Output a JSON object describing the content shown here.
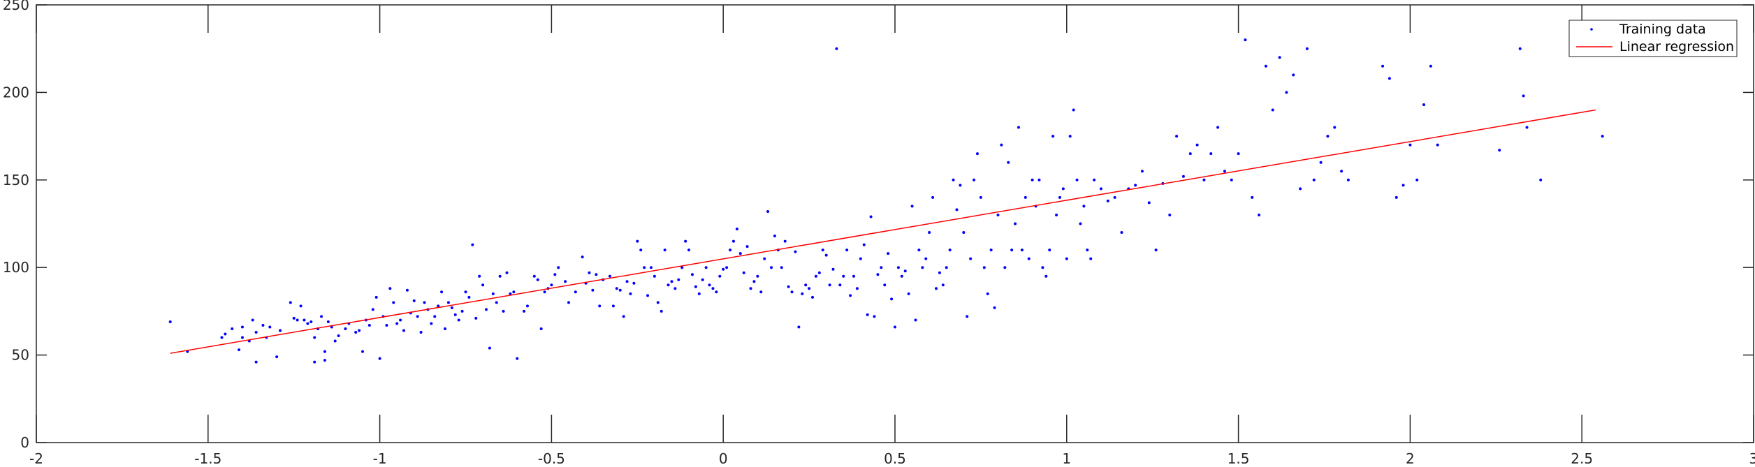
{
  "chart_data": {
    "type": "scatter",
    "title": "",
    "xlabel": "",
    "ylabel": "",
    "xlim": [
      -2,
      3
    ],
    "ylim": [
      0,
      250
    ],
    "xticks": [
      "-2",
      "-1.5",
      "-1",
      "-0.5",
      "0",
      "0.5",
      "1",
      "1.5",
      "2",
      "2.5",
      "3"
    ],
    "yticks": [
      "0",
      "50",
      "100",
      "150",
      "200",
      "250"
    ],
    "grid": false,
    "legend_position": "top-right",
    "colors": {
      "points": "#0000ff",
      "line": "#ff0000",
      "axes": "#262626"
    },
    "legend": [
      {
        "label": "Training data",
        "marker": "dot",
        "color": "#0000ff"
      },
      {
        "label": "Linear regression",
        "marker": "line",
        "color": "#ff0000"
      }
    ],
    "series": [
      {
        "name": "Training data",
        "kind": "scatter",
        "points": [
          [
            -1.61,
            69
          ],
          [
            -1.56,
            52
          ],
          [
            -1.46,
            60
          ],
          [
            -1.45,
            62
          ],
          [
            -1.43,
            65
          ],
          [
            -1.41,
            53
          ],
          [
            -1.4,
            60
          ],
          [
            -1.4,
            66
          ],
          [
            -1.38,
            58
          ],
          [
            -1.37,
            70
          ],
          [
            -1.36,
            63
          ],
          [
            -1.36,
            46
          ],
          [
            -1.34,
            67
          ],
          [
            -1.33,
            60
          ],
          [
            -1.32,
            66
          ],
          [
            -1.3,
            49
          ],
          [
            -1.29,
            64
          ],
          [
            -1.26,
            80
          ],
          [
            -1.25,
            71
          ],
          [
            -1.24,
            70
          ],
          [
            -1.23,
            78
          ],
          [
            -1.22,
            70
          ],
          [
            -1.21,
            68
          ],
          [
            -1.2,
            69
          ],
          [
            -1.19,
            60
          ],
          [
            -1.19,
            46
          ],
          [
            -1.18,
            65
          ],
          [
            -1.17,
            72
          ],
          [
            -1.16,
            52
          ],
          [
            -1.16,
            47
          ],
          [
            -1.15,
            69
          ],
          [
            -1.14,
            66
          ],
          [
            -1.13,
            58
          ],
          [
            -1.12,
            61
          ],
          [
            -1.1,
            65
          ],
          [
            -1.09,
            68
          ],
          [
            -1.07,
            63
          ],
          [
            -1.06,
            64
          ],
          [
            -1.05,
            52
          ],
          [
            -1.04,
            70
          ],
          [
            -1.03,
            67
          ],
          [
            -1.02,
            76
          ],
          [
            -1.01,
            83
          ],
          [
            -1.0,
            48
          ],
          [
            -0.99,
            72
          ],
          [
            -0.98,
            67
          ],
          [
            -0.97,
            88
          ],
          [
            -0.96,
            80
          ],
          [
            -0.95,
            68
          ],
          [
            -0.94,
            70
          ],
          [
            -0.93,
            64
          ],
          [
            -0.92,
            87
          ],
          [
            -0.91,
            74
          ],
          [
            -0.9,
            81
          ],
          [
            -0.89,
            72
          ],
          [
            -0.88,
            63
          ],
          [
            -0.87,
            80
          ],
          [
            -0.86,
            76
          ],
          [
            -0.85,
            68
          ],
          [
            -0.84,
            72
          ],
          [
            -0.83,
            78
          ],
          [
            -0.82,
            86
          ],
          [
            -0.81,
            65
          ],
          [
            -0.8,
            80
          ],
          [
            -0.79,
            77
          ],
          [
            -0.78,
            73
          ],
          [
            -0.77,
            70
          ],
          [
            -0.76,
            75
          ],
          [
            -0.75,
            86
          ],
          [
            -0.74,
            83
          ],
          [
            -0.73,
            113
          ],
          [
            -0.72,
            71
          ],
          [
            -0.71,
            95
          ],
          [
            -0.7,
            90
          ],
          [
            -0.69,
            76
          ],
          [
            -0.68,
            54
          ],
          [
            -0.67,
            85
          ],
          [
            -0.66,
            80
          ],
          [
            -0.65,
            95
          ],
          [
            -0.64,
            75
          ],
          [
            -0.63,
            97
          ],
          [
            -0.62,
            85
          ],
          [
            -0.61,
            86
          ],
          [
            -0.6,
            48
          ],
          [
            -0.58,
            75
          ],
          [
            -0.57,
            78
          ],
          [
            -0.55,
            95
          ],
          [
            -0.54,
            93
          ],
          [
            -0.53,
            65
          ],
          [
            -0.52,
            86
          ],
          [
            -0.51,
            88
          ],
          [
            -0.5,
            90
          ],
          [
            -0.49,
            96
          ],
          [
            -0.48,
            100
          ],
          [
            -0.46,
            92
          ],
          [
            -0.45,
            80
          ],
          [
            -0.43,
            86
          ],
          [
            -0.41,
            106
          ],
          [
            -0.4,
            91
          ],
          [
            -0.39,
            97
          ],
          [
            -0.38,
            87
          ],
          [
            -0.37,
            96
          ],
          [
            -0.36,
            78
          ],
          [
            -0.35,
            93
          ],
          [
            -0.33,
            95
          ],
          [
            -0.32,
            78
          ],
          [
            -0.31,
            88
          ],
          [
            -0.3,
            87
          ],
          [
            -0.29,
            72
          ],
          [
            -0.28,
            92
          ],
          [
            -0.27,
            85
          ],
          [
            -0.26,
            91
          ],
          [
            -0.25,
            115
          ],
          [
            -0.24,
            110
          ],
          [
            -0.23,
            100
          ],
          [
            -0.22,
            84
          ],
          [
            -0.21,
            100
          ],
          [
            -0.2,
            95
          ],
          [
            -0.19,
            80
          ],
          [
            -0.18,
            75
          ],
          [
            -0.17,
            110
          ],
          [
            -0.16,
            90
          ],
          [
            -0.15,
            92
          ],
          [
            -0.14,
            88
          ],
          [
            -0.13,
            93
          ],
          [
            -0.12,
            100
          ],
          [
            -0.11,
            115
          ],
          [
            -0.1,
            110
          ],
          [
            -0.09,
            96
          ],
          [
            -0.08,
            89
          ],
          [
            -0.07,
            85
          ],
          [
            -0.06,
            93
          ],
          [
            -0.05,
            100
          ],
          [
            -0.04,
            90
          ],
          [
            -0.03,
            88
          ],
          [
            -0.02,
            86
          ],
          [
            -0.01,
            95
          ],
          [
            0.0,
            99
          ],
          [
            0.01,
            100
          ],
          [
            0.02,
            110
          ],
          [
            0.03,
            115
          ],
          [
            0.04,
            122
          ],
          [
            0.05,
            108
          ],
          [
            0.06,
            97
          ],
          [
            0.07,
            112
          ],
          [
            0.08,
            88
          ],
          [
            0.09,
            92
          ],
          [
            0.1,
            95
          ],
          [
            0.11,
            86
          ],
          [
            0.12,
            105
          ],
          [
            0.13,
            132
          ],
          [
            0.14,
            100
          ],
          [
            0.15,
            118
          ],
          [
            0.16,
            110
          ],
          [
            0.17,
            100
          ],
          [
            0.18,
            115
          ],
          [
            0.19,
            89
          ],
          [
            0.2,
            86
          ],
          [
            0.21,
            109
          ],
          [
            0.22,
            66
          ],
          [
            0.23,
            85
          ],
          [
            0.24,
            90
          ],
          [
            0.25,
            88
          ],
          [
            0.26,
            83
          ],
          [
            0.27,
            95
          ],
          [
            0.28,
            97
          ],
          [
            0.29,
            110
          ],
          [
            0.3,
            107
          ],
          [
            0.31,
            90
          ],
          [
            0.32,
            99
          ],
          [
            0.33,
            225
          ],
          [
            0.34,
            90
          ],
          [
            0.35,
            95
          ],
          [
            0.36,
            110
          ],
          [
            0.37,
            84
          ],
          [
            0.38,
            95
          ],
          [
            0.39,
            88
          ],
          [
            0.4,
            105
          ],
          [
            0.41,
            113
          ],
          [
            0.42,
            73
          ],
          [
            0.43,
            129
          ],
          [
            0.44,
            72
          ],
          [
            0.45,
            96
          ],
          [
            0.46,
            100
          ],
          [
            0.47,
            90
          ],
          [
            0.48,
            108
          ],
          [
            0.49,
            82
          ],
          [
            0.5,
            66
          ],
          [
            0.51,
            100
          ],
          [
            0.52,
            95
          ],
          [
            0.53,
            98
          ],
          [
            0.54,
            85
          ],
          [
            0.55,
            135
          ],
          [
            0.56,
            70
          ],
          [
            0.57,
            110
          ],
          [
            0.58,
            100
          ],
          [
            0.59,
            105
          ],
          [
            0.6,
            120
          ],
          [
            0.61,
            140
          ],
          [
            0.62,
            88
          ],
          [
            0.63,
            97
          ],
          [
            0.64,
            90
          ],
          [
            0.65,
            100
          ],
          [
            0.66,
            110
          ],
          [
            0.67,
            150
          ],
          [
            0.68,
            133
          ],
          [
            0.69,
            147
          ],
          [
            0.7,
            120
          ],
          [
            0.71,
            72
          ],
          [
            0.72,
            105
          ],
          [
            0.73,
            150
          ],
          [
            0.74,
            165
          ],
          [
            0.75,
            140
          ],
          [
            0.76,
            100
          ],
          [
            0.77,
            85
          ],
          [
            0.78,
            110
          ],
          [
            0.79,
            77
          ],
          [
            0.8,
            130
          ],
          [
            0.81,
            170
          ],
          [
            0.82,
            100
          ],
          [
            0.83,
            160
          ],
          [
            0.84,
            110
          ],
          [
            0.85,
            125
          ],
          [
            0.86,
            180
          ],
          [
            0.87,
            110
          ],
          [
            0.88,
            140
          ],
          [
            0.89,
            105
          ],
          [
            0.9,
            150
          ],
          [
            0.91,
            135
          ],
          [
            0.92,
            150
          ],
          [
            0.93,
            100
          ],
          [
            0.94,
            95
          ],
          [
            0.95,
            110
          ],
          [
            0.96,
            175
          ],
          [
            0.97,
            130
          ],
          [
            0.98,
            140
          ],
          [
            0.99,
            145
          ],
          [
            1.0,
            105
          ],
          [
            1.01,
            175
          ],
          [
            1.02,
            190
          ],
          [
            1.03,
            150
          ],
          [
            1.04,
            125
          ],
          [
            1.05,
            135
          ],
          [
            1.06,
            110
          ],
          [
            1.07,
            105
          ],
          [
            1.08,
            150
          ],
          [
            1.1,
            145
          ],
          [
            1.12,
            138
          ],
          [
            1.14,
            140
          ],
          [
            1.16,
            120
          ],
          [
            1.18,
            145
          ],
          [
            1.2,
            147
          ],
          [
            1.22,
            155
          ],
          [
            1.24,
            137
          ],
          [
            1.26,
            110
          ],
          [
            1.28,
            148
          ],
          [
            1.3,
            130
          ],
          [
            1.32,
            175
          ],
          [
            1.34,
            152
          ],
          [
            1.36,
            165
          ],
          [
            1.38,
            170
          ],
          [
            1.4,
            150
          ],
          [
            1.42,
            165
          ],
          [
            1.44,
            180
          ],
          [
            1.46,
            155
          ],
          [
            1.48,
            150
          ],
          [
            1.5,
            165
          ],
          [
            1.52,
            230
          ],
          [
            1.54,
            140
          ],
          [
            1.56,
            130
          ],
          [
            1.58,
            215
          ],
          [
            1.6,
            190
          ],
          [
            1.62,
            220
          ],
          [
            1.64,
            200
          ],
          [
            1.66,
            210
          ],
          [
            1.68,
            145
          ],
          [
            1.7,
            225
          ],
          [
            1.72,
            150
          ],
          [
            1.74,
            160
          ],
          [
            1.76,
            175
          ],
          [
            1.78,
            180
          ],
          [
            1.8,
            155
          ],
          [
            1.82,
            150
          ],
          [
            1.92,
            215
          ],
          [
            1.94,
            208
          ],
          [
            1.96,
            140
          ],
          [
            1.98,
            147
          ],
          [
            2.0,
            170
          ],
          [
            2.02,
            150
          ],
          [
            2.04,
            193
          ],
          [
            2.06,
            215
          ],
          [
            2.08,
            170
          ],
          [
            2.26,
            167
          ],
          [
            2.32,
            225
          ],
          [
            2.33,
            198
          ],
          [
            2.34,
            180
          ],
          [
            2.38,
            150
          ],
          [
            2.56,
            175
          ]
        ]
      },
      {
        "name": "Linear regression",
        "kind": "line",
        "points": [
          [
            -1.61,
            51
          ],
          [
            2.54,
            190
          ]
        ]
      }
    ]
  }
}
